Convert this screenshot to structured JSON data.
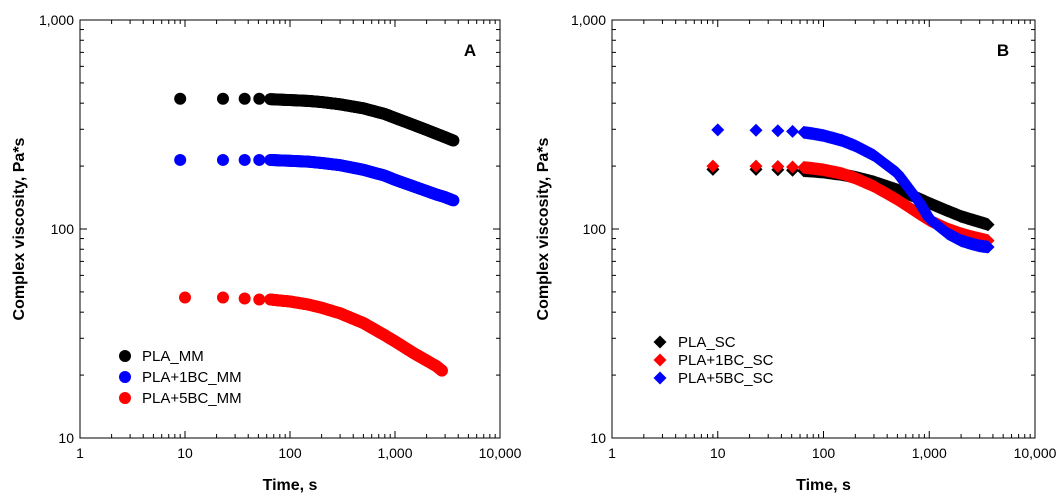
{
  "chart_data": [
    {
      "type": "scatter",
      "panel_label": "A",
      "xlabel": "Time, s",
      "ylabel": "Complex viscosity, Pa*s",
      "x_scale": "log",
      "y_scale": "log",
      "xlim": [
        1,
        10000
      ],
      "ylim": [
        10,
        1000
      ],
      "x_ticks": [
        "1",
        "10",
        "100",
        "1,000",
        "10,000"
      ],
      "y_ticks": [
        "10",
        "100",
        "1,000"
      ],
      "marker": "circle",
      "legend_position": "lower-left",
      "series": [
        {
          "name": "PLA_MM",
          "color": "#000000",
          "x": [
            9,
            23,
            37,
            51,
            65,
            79,
            100,
            150,
            200,
            300,
            500,
            800,
            1000,
            1500,
            2000,
            2500,
            3000,
            3600
          ],
          "y": [
            420,
            420,
            420,
            420,
            418,
            416,
            414,
            410,
            405,
            395,
            378,
            355,
            340,
            315,
            298,
            285,
            275,
            265
          ]
        },
        {
          "name": "PLA+1BC_MM",
          "color": "#0000ff",
          "x": [
            9,
            23,
            37,
            51,
            65,
            79,
            100,
            150,
            200,
            300,
            500,
            800,
            1000,
            1500,
            2000,
            2500,
            3000,
            3600
          ],
          "y": [
            214,
            214,
            214,
            214,
            214,
            213,
            212,
            210,
            207,
            202,
            192,
            180,
            172,
            160,
            152,
            146,
            142,
            137
          ]
        },
        {
          "name": "PLA+5BC_MM",
          "color": "#ff0000",
          "x": [
            10,
            23,
            37,
            51,
            65,
            79,
            100,
            150,
            200,
            300,
            500,
            800,
            1000,
            1500,
            2000,
            2500,
            2800
          ],
          "y": [
            47,
            47,
            46.5,
            46,
            46,
            45.5,
            45,
            43.5,
            42,
            39.5,
            35.5,
            31,
            29,
            25.5,
            23.5,
            22,
            21
          ]
        }
      ]
    },
    {
      "type": "scatter",
      "panel_label": "B",
      "xlabel": "Time, s",
      "ylabel": "Complex viscosity, Pa*s",
      "x_scale": "log",
      "y_scale": "log",
      "xlim": [
        1,
        10000
      ],
      "ylim": [
        10,
        1000
      ],
      "x_ticks": [
        "1",
        "10",
        "100",
        "1,000",
        "10,000"
      ],
      "y_ticks": [
        "10",
        "100",
        "1,000"
      ],
      "marker": "diamond",
      "legend_position": "lower-left",
      "series": [
        {
          "name": "PLA_SC",
          "color": "#000000",
          "x": [
            9,
            23,
            37,
            51,
            65,
            79,
            100,
            150,
            200,
            300,
            500,
            800,
            1000,
            1500,
            2000,
            2500,
            3000,
            3600
          ],
          "y": [
            193,
            193,
            192,
            191,
            190,
            189,
            187,
            182,
            177,
            168,
            154,
            140,
            133,
            122,
            115,
            111,
            108,
            105
          ]
        },
        {
          "name": "PLA+1BC_SC",
          "color": "#ff0000",
          "x": [
            9,
            23,
            37,
            51,
            65,
            79,
            100,
            150,
            200,
            300,
            500,
            800,
            1000,
            1500,
            2000,
            2500,
            3000,
            3600
          ],
          "y": [
            200,
            200,
            199,
            198,
            197,
            195,
            192,
            184,
            175,
            160,
            138,
            118,
            110,
            100,
            95,
            92,
            90,
            88
          ]
        },
        {
          "name": "PLA+5BC_SC",
          "color": "#0000ff",
          "x": [
            10,
            23,
            37,
            51,
            65,
            79,
            100,
            150,
            200,
            300,
            500,
            800,
            1000,
            1500,
            2000,
            2500,
            3000,
            3600
          ],
          "y": [
            298,
            297,
            295,
            293,
            290,
            286,
            280,
            265,
            250,
            225,
            185,
            135,
            112,
            95,
            88,
            85,
            83,
            82
          ]
        }
      ]
    }
  ]
}
